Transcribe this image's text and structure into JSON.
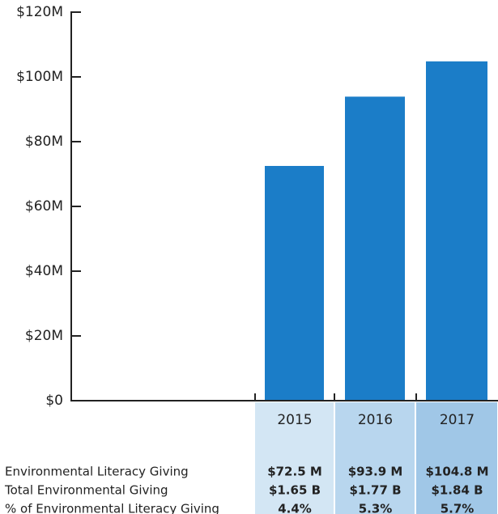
{
  "chart_data": {
    "type": "bar",
    "categories": [
      "2015",
      "2016",
      "2017"
    ],
    "values": [
      72.5,
      93.9,
      104.8
    ],
    "value_labels": [
      "$72.5 M",
      "$93.9 M",
      "$104.8 M"
    ],
    "color": "#1b7dc8",
    "ylim": [
      0,
      120
    ],
    "yticks": [
      {
        "value": 0,
        "label": "$0"
      },
      {
        "value": 20,
        "label": "$20M"
      },
      {
        "value": 40,
        "label": "$40M"
      },
      {
        "value": 60,
        "label": "$60M"
      },
      {
        "value": 80,
        "label": "$80M"
      },
      {
        "value": 100,
        "label": "$100M"
      },
      {
        "value": 120,
        "label": "$120M"
      }
    ],
    "column_colors": [
      "#d3e6f4",
      "#b8d6ee",
      "#a0c7e7"
    ],
    "table": {
      "row_labels": [
        "Environmental Literacy Giving",
        "Total Environmental Giving",
        "% of Environmental Literacy Giving"
      ],
      "total_giving": [
        "$1.65 B",
        "$1.77 B",
        "$1.84 B"
      ],
      "literacy_share": [
        "4.4%",
        "5.3%",
        "5.7%"
      ]
    }
  }
}
